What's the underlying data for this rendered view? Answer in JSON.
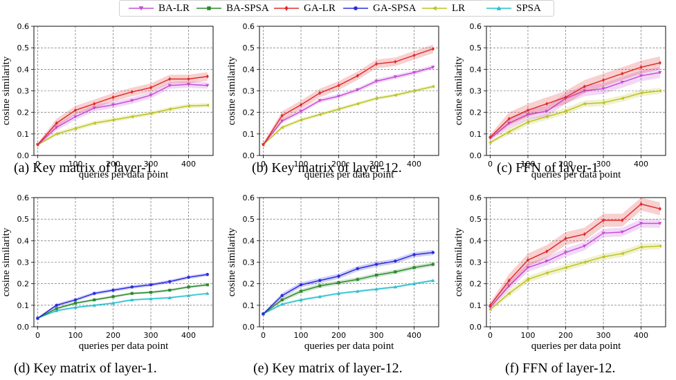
{
  "legend": {
    "placement": "top-center",
    "items": [
      {
        "name": "BA-LR",
        "color": "#c44dd8",
        "marker": "triangle-down"
      },
      {
        "name": "BA-SPSA",
        "color": "#2c8a2c",
        "marker": "square"
      },
      {
        "name": "GA-LR",
        "color": "#e02b2b",
        "marker": "diamond"
      },
      {
        "name": "GA-SPSA",
        "color": "#2a2ae0",
        "marker": "circle"
      },
      {
        "name": "LR",
        "color": "#bcc21e",
        "marker": "triangle-left"
      },
      {
        "name": "SPSA",
        "color": "#27bfcf",
        "marker": "triangle-up"
      }
    ]
  },
  "colors": {
    "BA-LR": "#c44dd8",
    "BA-SPSA": "#2c8a2c",
    "GA-LR": "#e02b2b",
    "GA-SPSA": "#2a2ae0",
    "LR": "#bcc21e",
    "SPSA": "#27bfcf"
  },
  "chart_data": [
    {
      "type": "line",
      "caption": "(a) Key matrix of layer-1.",
      "xlabel": "queries per data point",
      "ylabel": "cosine similarity",
      "xlim": [
        -10,
        465
      ],
      "ylim": [
        0,
        0.6
      ],
      "xticks": [
        "0",
        "100",
        "200",
        "300",
        "400"
      ],
      "yticks": [
        "0.0",
        "0.1",
        "0.2",
        "0.3",
        "0.4",
        "0.5",
        "0.6"
      ],
      "grid": true,
      "x": [
        0,
        50,
        100,
        150,
        200,
        250,
        300,
        350,
        400,
        450
      ],
      "series": [
        {
          "name": "GA-LR",
          "values": [
            0.05,
            0.15,
            0.21,
            0.24,
            0.27,
            0.295,
            0.315,
            0.355,
            0.355,
            0.367
          ],
          "band": 0.02
        },
        {
          "name": "BA-LR",
          "values": [
            0.05,
            0.13,
            0.18,
            0.22,
            0.235,
            0.255,
            0.28,
            0.325,
            0.33,
            0.325
          ],
          "band": 0.015
        },
        {
          "name": "LR",
          "values": [
            0.05,
            0.1,
            0.125,
            0.15,
            0.165,
            0.18,
            0.195,
            0.215,
            0.23,
            0.233
          ],
          "band": 0.01
        }
      ]
    },
    {
      "type": "line",
      "caption": "(b) Key matrix of layer-12.",
      "xlabel": "queries per data point",
      "ylabel": "cosine similarity",
      "xlim": [
        -10,
        465
      ],
      "ylim": [
        0,
        0.6
      ],
      "xticks": [
        "0",
        "100",
        "200",
        "300",
        "400"
      ],
      "yticks": [
        "0.0",
        "0.1",
        "0.2",
        "0.3",
        "0.4",
        "0.5",
        "0.6"
      ],
      "grid": true,
      "x": [
        0,
        50,
        100,
        150,
        200,
        250,
        300,
        350,
        400,
        450
      ],
      "series": [
        {
          "name": "GA-LR",
          "values": [
            0.05,
            0.185,
            0.235,
            0.29,
            0.325,
            0.37,
            0.425,
            0.435,
            0.465,
            0.495
          ],
          "band": 0.02
        },
        {
          "name": "BA-LR",
          "values": [
            0.05,
            0.16,
            0.205,
            0.255,
            0.275,
            0.305,
            0.345,
            0.365,
            0.385,
            0.41
          ],
          "band": 0.01
        },
        {
          "name": "LR",
          "values": [
            0.05,
            0.13,
            0.165,
            0.19,
            0.215,
            0.24,
            0.265,
            0.28,
            0.3,
            0.32
          ],
          "band": 0.008
        }
      ]
    },
    {
      "type": "line",
      "caption": "(c) FFN of layer-1.",
      "xlabel": "queries per data point",
      "ylabel": "cosine similarity",
      "xlim": [
        -10,
        465
      ],
      "ylim": [
        0,
        0.6
      ],
      "xticks": [
        "0",
        "100",
        "200",
        "300",
        "400"
      ],
      "yticks": [
        "0.0",
        "0.1",
        "0.2",
        "0.3",
        "0.4",
        "0.5",
        "0.6"
      ],
      "grid": true,
      "x": [
        0,
        50,
        100,
        150,
        200,
        250,
        300,
        350,
        400,
        450
      ],
      "series": [
        {
          "name": "GA-LR",
          "values": [
            0.085,
            0.17,
            0.21,
            0.24,
            0.27,
            0.32,
            0.35,
            0.38,
            0.41,
            0.43
          ],
          "band": 0.03
        },
        {
          "name": "BA-LR",
          "values": [
            0.08,
            0.15,
            0.19,
            0.205,
            0.265,
            0.3,
            0.31,
            0.34,
            0.37,
            0.385
          ],
          "band": 0.025
        },
        {
          "name": "LR",
          "values": [
            0.06,
            0.11,
            0.155,
            0.18,
            0.205,
            0.24,
            0.245,
            0.265,
            0.29,
            0.3
          ],
          "band": 0.015
        }
      ]
    },
    {
      "type": "line",
      "caption": "(d) Key matrix of layer-1.",
      "xlabel": "queries per data point",
      "ylabel": "cosine similarity",
      "xlim": [
        -10,
        465
      ],
      "ylim": [
        0,
        0.6
      ],
      "xticks": [
        "0",
        "100",
        "200",
        "300",
        "400"
      ],
      "yticks": [
        "0.0",
        "0.1",
        "0.2",
        "0.3",
        "0.4",
        "0.5",
        "0.6"
      ],
      "grid": true,
      "x": [
        0,
        50,
        100,
        150,
        200,
        250,
        300,
        350,
        400,
        450
      ],
      "series": [
        {
          "name": "GA-SPSA",
          "values": [
            0.04,
            0.1,
            0.125,
            0.155,
            0.17,
            0.185,
            0.195,
            0.21,
            0.23,
            0.243
          ],
          "band": 0.008
        },
        {
          "name": "BA-SPSA",
          "values": [
            0.04,
            0.085,
            0.11,
            0.125,
            0.14,
            0.155,
            0.16,
            0.17,
            0.185,
            0.195
          ],
          "band": 0.006
        },
        {
          "name": "SPSA",
          "values": [
            0.04,
            0.075,
            0.09,
            0.1,
            0.11,
            0.125,
            0.13,
            0.135,
            0.145,
            0.155
          ],
          "band": 0.005
        }
      ]
    },
    {
      "type": "line",
      "caption": "(e) Key matrix of layer-12.",
      "xlabel": "queries per data point",
      "ylabel": "cosine similarity",
      "xlim": [
        -10,
        465
      ],
      "ylim": [
        0,
        0.6
      ],
      "xticks": [
        "0",
        "100",
        "200",
        "300",
        "400"
      ],
      "yticks": [
        "0.0",
        "0.1",
        "0.2",
        "0.3",
        "0.4",
        "0.5",
        "0.6"
      ],
      "grid": true,
      "x": [
        0,
        50,
        100,
        150,
        200,
        250,
        300,
        350,
        400,
        450
      ],
      "series": [
        {
          "name": "GA-SPSA",
          "values": [
            0.06,
            0.145,
            0.195,
            0.215,
            0.235,
            0.27,
            0.29,
            0.305,
            0.335,
            0.345
          ],
          "band": 0.012
        },
        {
          "name": "BA-SPSA",
          "values": [
            0.06,
            0.125,
            0.165,
            0.19,
            0.205,
            0.22,
            0.24,
            0.255,
            0.275,
            0.29
          ],
          "band": 0.01
        },
        {
          "name": "SPSA",
          "values": [
            0.06,
            0.105,
            0.125,
            0.14,
            0.155,
            0.165,
            0.175,
            0.185,
            0.2,
            0.215
          ],
          "band": 0.006
        }
      ]
    },
    {
      "type": "line",
      "caption": "(f) FFN of layer-12.",
      "xlabel": "queries per data point",
      "ylabel": "cosine similarity",
      "xlim": [
        -10,
        465
      ],
      "ylim": [
        0,
        0.6
      ],
      "xticks": [
        "0",
        "100",
        "200",
        "300",
        "400"
      ],
      "yticks": [
        "0.0",
        "0.1",
        "0.2",
        "0.3",
        "0.4",
        "0.5",
        "0.6"
      ],
      "grid": true,
      "x": [
        0,
        50,
        100,
        150,
        200,
        250,
        300,
        350,
        400,
        450
      ],
      "series": [
        {
          "name": "GA-LR",
          "values": [
            0.1,
            0.215,
            0.31,
            0.35,
            0.41,
            0.43,
            0.495,
            0.495,
            0.57,
            0.548
          ],
          "band": 0.03
        },
        {
          "name": "BA-LR",
          "values": [
            0.09,
            0.19,
            0.275,
            0.305,
            0.345,
            0.375,
            0.435,
            0.44,
            0.48,
            0.48
          ],
          "band": 0.02
        },
        {
          "name": "LR",
          "values": [
            0.08,
            0.155,
            0.22,
            0.25,
            0.275,
            0.3,
            0.325,
            0.34,
            0.37,
            0.375
          ],
          "band": 0.015
        }
      ]
    }
  ]
}
